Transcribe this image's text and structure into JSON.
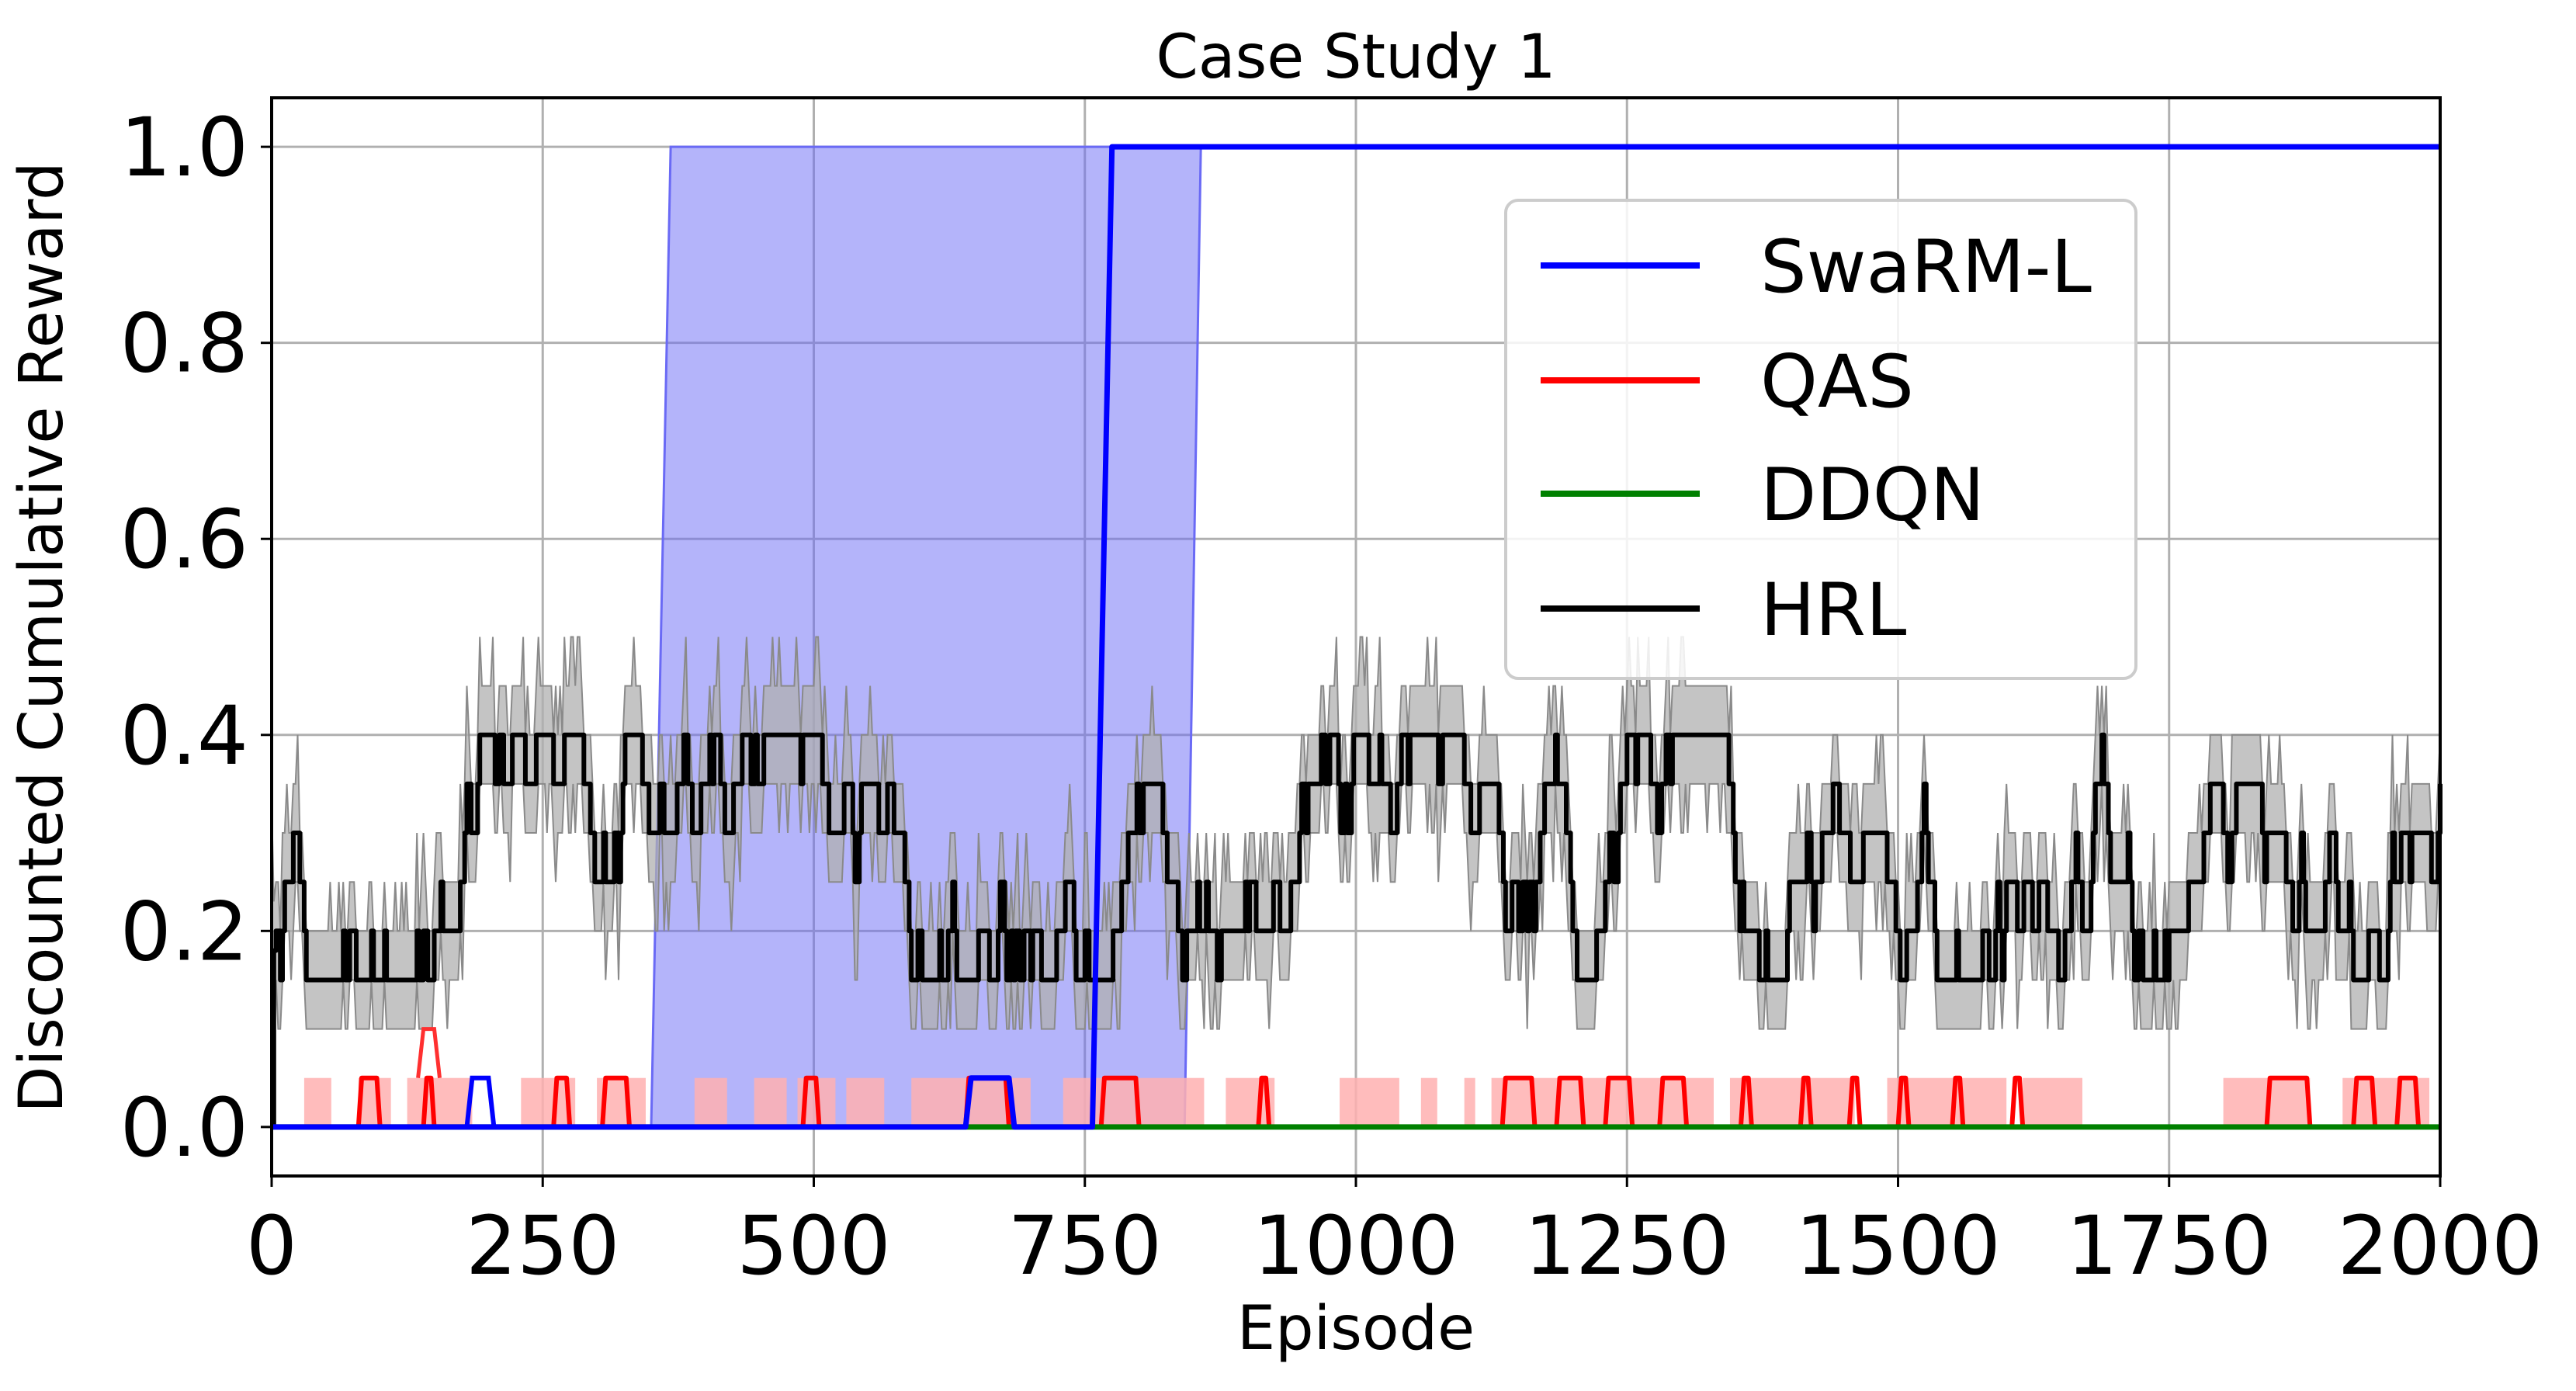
{
  "chart_data": {
    "type": "line",
    "title": "Case Study 1",
    "xlabel": "Episode",
    "ylabel": "Discounted Cumulative Reward",
    "xlim": [
      0,
      2000
    ],
    "ylim": [
      -0.05,
      1.05
    ],
    "x_ticks": [
      0,
      250,
      500,
      750,
      1000,
      1250,
      1500,
      1750,
      2000
    ],
    "y_ticks": [
      0.0,
      0.2,
      0.4,
      0.6,
      0.8,
      1.0
    ],
    "x_tick_labels": [
      "0",
      "250",
      "500",
      "750",
      "1000",
      "1250",
      "1500",
      "1750",
      "2000"
    ],
    "y_tick_labels": [
      "0.0",
      "0.2",
      "0.4",
      "0.6",
      "0.8",
      "1.0"
    ],
    "grid": true,
    "legend_position": "upper-right",
    "series": [
      {
        "name": "SwaRM-L",
        "color": "#0000ff",
        "fill_color": "#6a6af5",
        "mean": [
          [
            0,
            0
          ],
          [
            640,
            0
          ],
          [
            645,
            0.05
          ],
          [
            680,
            0.05
          ],
          [
            685,
            0
          ],
          [
            757,
            0
          ],
          [
            775,
            1.0
          ],
          [
            2000,
            1.0
          ]
        ],
        "band": [
          [
            350,
            0
          ],
          [
            368,
            1.0
          ],
          [
            857,
            1.0
          ],
          [
            842,
            0
          ]
        ]
      },
      {
        "name": "QAS",
        "color": "#ff0000",
        "fill_color": "#ffb0b0",
        "mean_pulses": [
          [
            80,
            100
          ],
          [
            140,
            150
          ],
          [
            260,
            275
          ],
          [
            305,
            330
          ],
          [
            490,
            505
          ],
          [
            640,
            680
          ],
          [
            765,
            800
          ],
          [
            910,
            920
          ],
          [
            1135,
            1165
          ],
          [
            1185,
            1210
          ],
          [
            1230,
            1255
          ],
          [
            1280,
            1305
          ],
          [
            1355,
            1365
          ],
          [
            1410,
            1420
          ],
          [
            1455,
            1465
          ],
          [
            1500,
            1510
          ],
          [
            1550,
            1560
          ],
          [
            1605,
            1615
          ],
          [
            1840,
            1880
          ],
          [
            1920,
            1940
          ],
          [
            1960,
            1980
          ]
        ],
        "band_pulses": [
          [
            30,
            55
          ],
          [
            80,
            110
          ],
          [
            125,
            185
          ],
          [
            230,
            280
          ],
          [
            300,
            345
          ],
          [
            390,
            420
          ],
          [
            445,
            475
          ],
          [
            485,
            520
          ],
          [
            530,
            565
          ],
          [
            590,
            700
          ],
          [
            730,
            860
          ],
          [
            880,
            925
          ],
          [
            985,
            1040
          ],
          [
            1060,
            1075
          ],
          [
            1100,
            1110
          ],
          [
            1125,
            1330
          ],
          [
            1345,
            1460
          ],
          [
            1490,
            1600
          ],
          [
            1615,
            1670
          ],
          [
            1800,
            1880
          ],
          [
            1910,
            1990
          ]
        ],
        "peak": [
          [
            140,
            0.1
          ],
          [
            150,
            0.1
          ]
        ]
      },
      {
        "name": "DDQN",
        "color": "#008000",
        "mean": [
          [
            0,
            0
          ],
          [
            2000,
            0
          ]
        ]
      },
      {
        "name": "HRL",
        "color": "#000000",
        "fill_color": "#b0b0b0",
        "baseline": 0.25,
        "min": 0.15,
        "max": 0.4,
        "noise_min": 0.1,
        "noise_max": 0.5
      }
    ]
  }
}
